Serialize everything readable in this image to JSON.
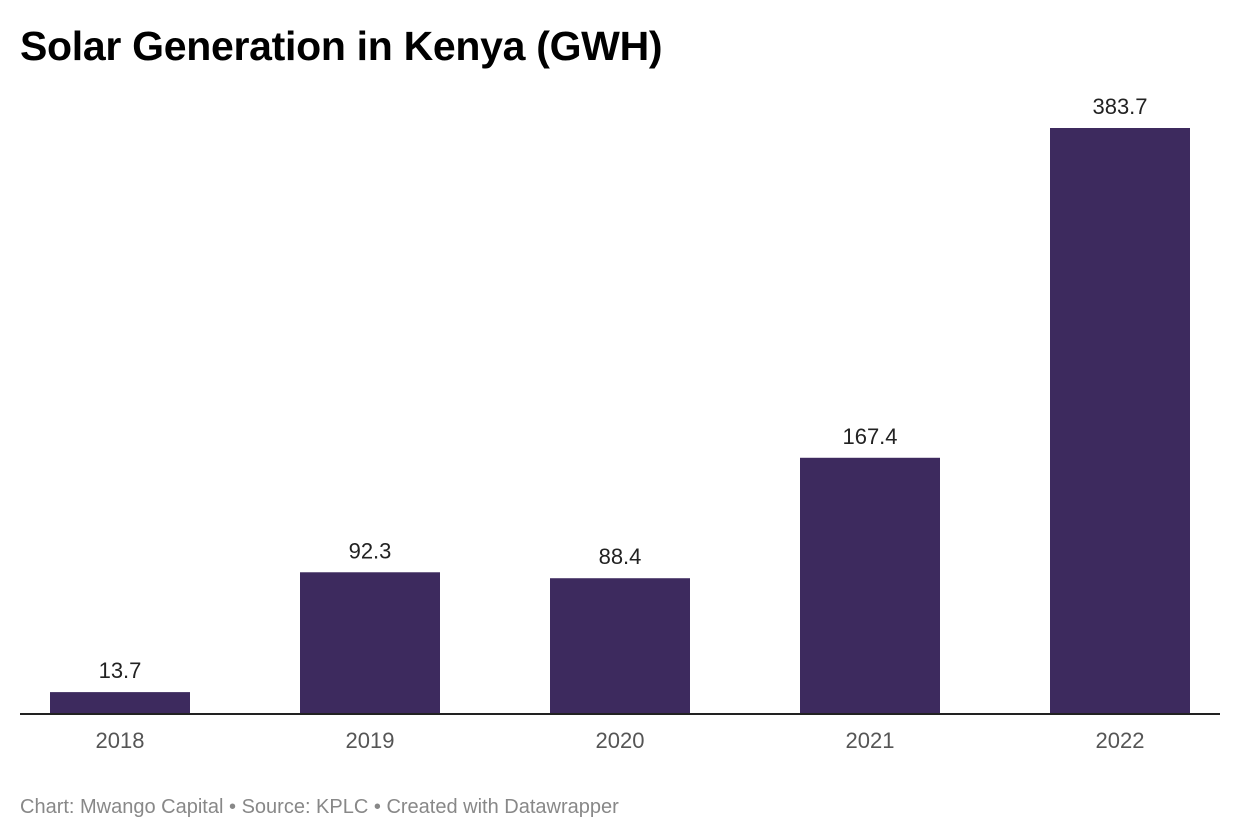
{
  "chart_data": {
    "type": "bar",
    "title": "Solar Generation in Kenya (GWH)",
    "categories": [
      "2018",
      "2019",
      "2020",
      "2021",
      "2022"
    ],
    "values": [
      13.7,
      92.3,
      88.4,
      167.4,
      383.7
    ],
    "value_labels": [
      "13.7",
      "92.3",
      "88.4",
      "167.4",
      "383.7"
    ],
    "xlabel": "",
    "ylabel": "",
    "ylim": [
      0,
      383.7
    ],
    "grid": false,
    "legend": "none",
    "colors": {
      "bar": "#3d2a5e",
      "axis": "#222222",
      "value_label": "#222222",
      "tick_label": "#555555"
    }
  },
  "footer": {
    "credit": "Chart: Mwango Capital",
    "source": "Source: KPLC",
    "tool": "Created with Datawrapper",
    "separator": "•"
  }
}
